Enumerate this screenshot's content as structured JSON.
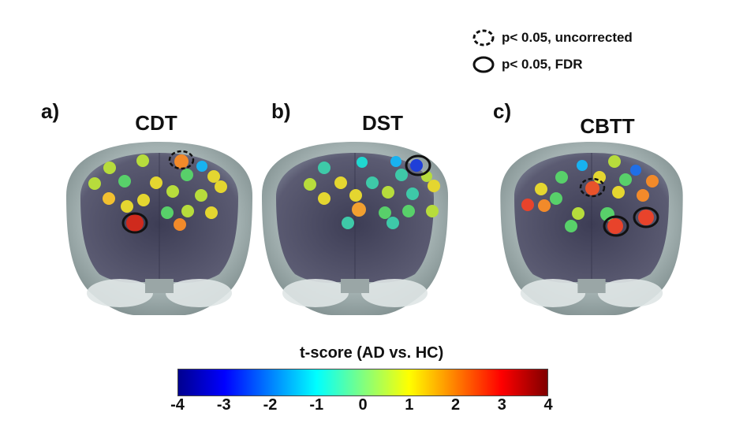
{
  "legend": {
    "uncorrected": "p< 0.05, uncorrected",
    "fdr": "p< 0.05, FDR"
  },
  "panels": [
    {
      "letter": "a)",
      "title": "CDT"
    },
    {
      "letter": "b)",
      "title": "DST"
    },
    {
      "letter": "c)",
      "title": "CBTT"
    }
  ],
  "colorbar": {
    "title": "t-score (AD vs. HC)",
    "ticks": [
      "-4",
      "-3",
      "-2",
      "-1",
      "0",
      "1",
      "2",
      "3",
      "4"
    ],
    "range": [
      -4,
      4
    ],
    "colormap": [
      "#00008f",
      "#0000ff",
      "#0080ff",
      "#00ffff",
      "#80ff80",
      "#ffff00",
      "#ff8000",
      "#ff0000",
      "#800000"
    ]
  },
  "colors": {
    "brain_outer": "#a7b4b4",
    "brain_inner": "#4b4b63",
    "channel_colors": {
      "blue": "#1f3fd8",
      "skyblue": "#18b2f0",
      "cyan": "#20d8d0",
      "teal": "#3ec9a8",
      "green": "#58d06a",
      "yellowgreen": "#b7dc3c",
      "yellow": "#e4d630",
      "orange": "#f28a2a",
      "red": "#e8432b",
      "darkred": "#cf2a1d"
    }
  }
}
